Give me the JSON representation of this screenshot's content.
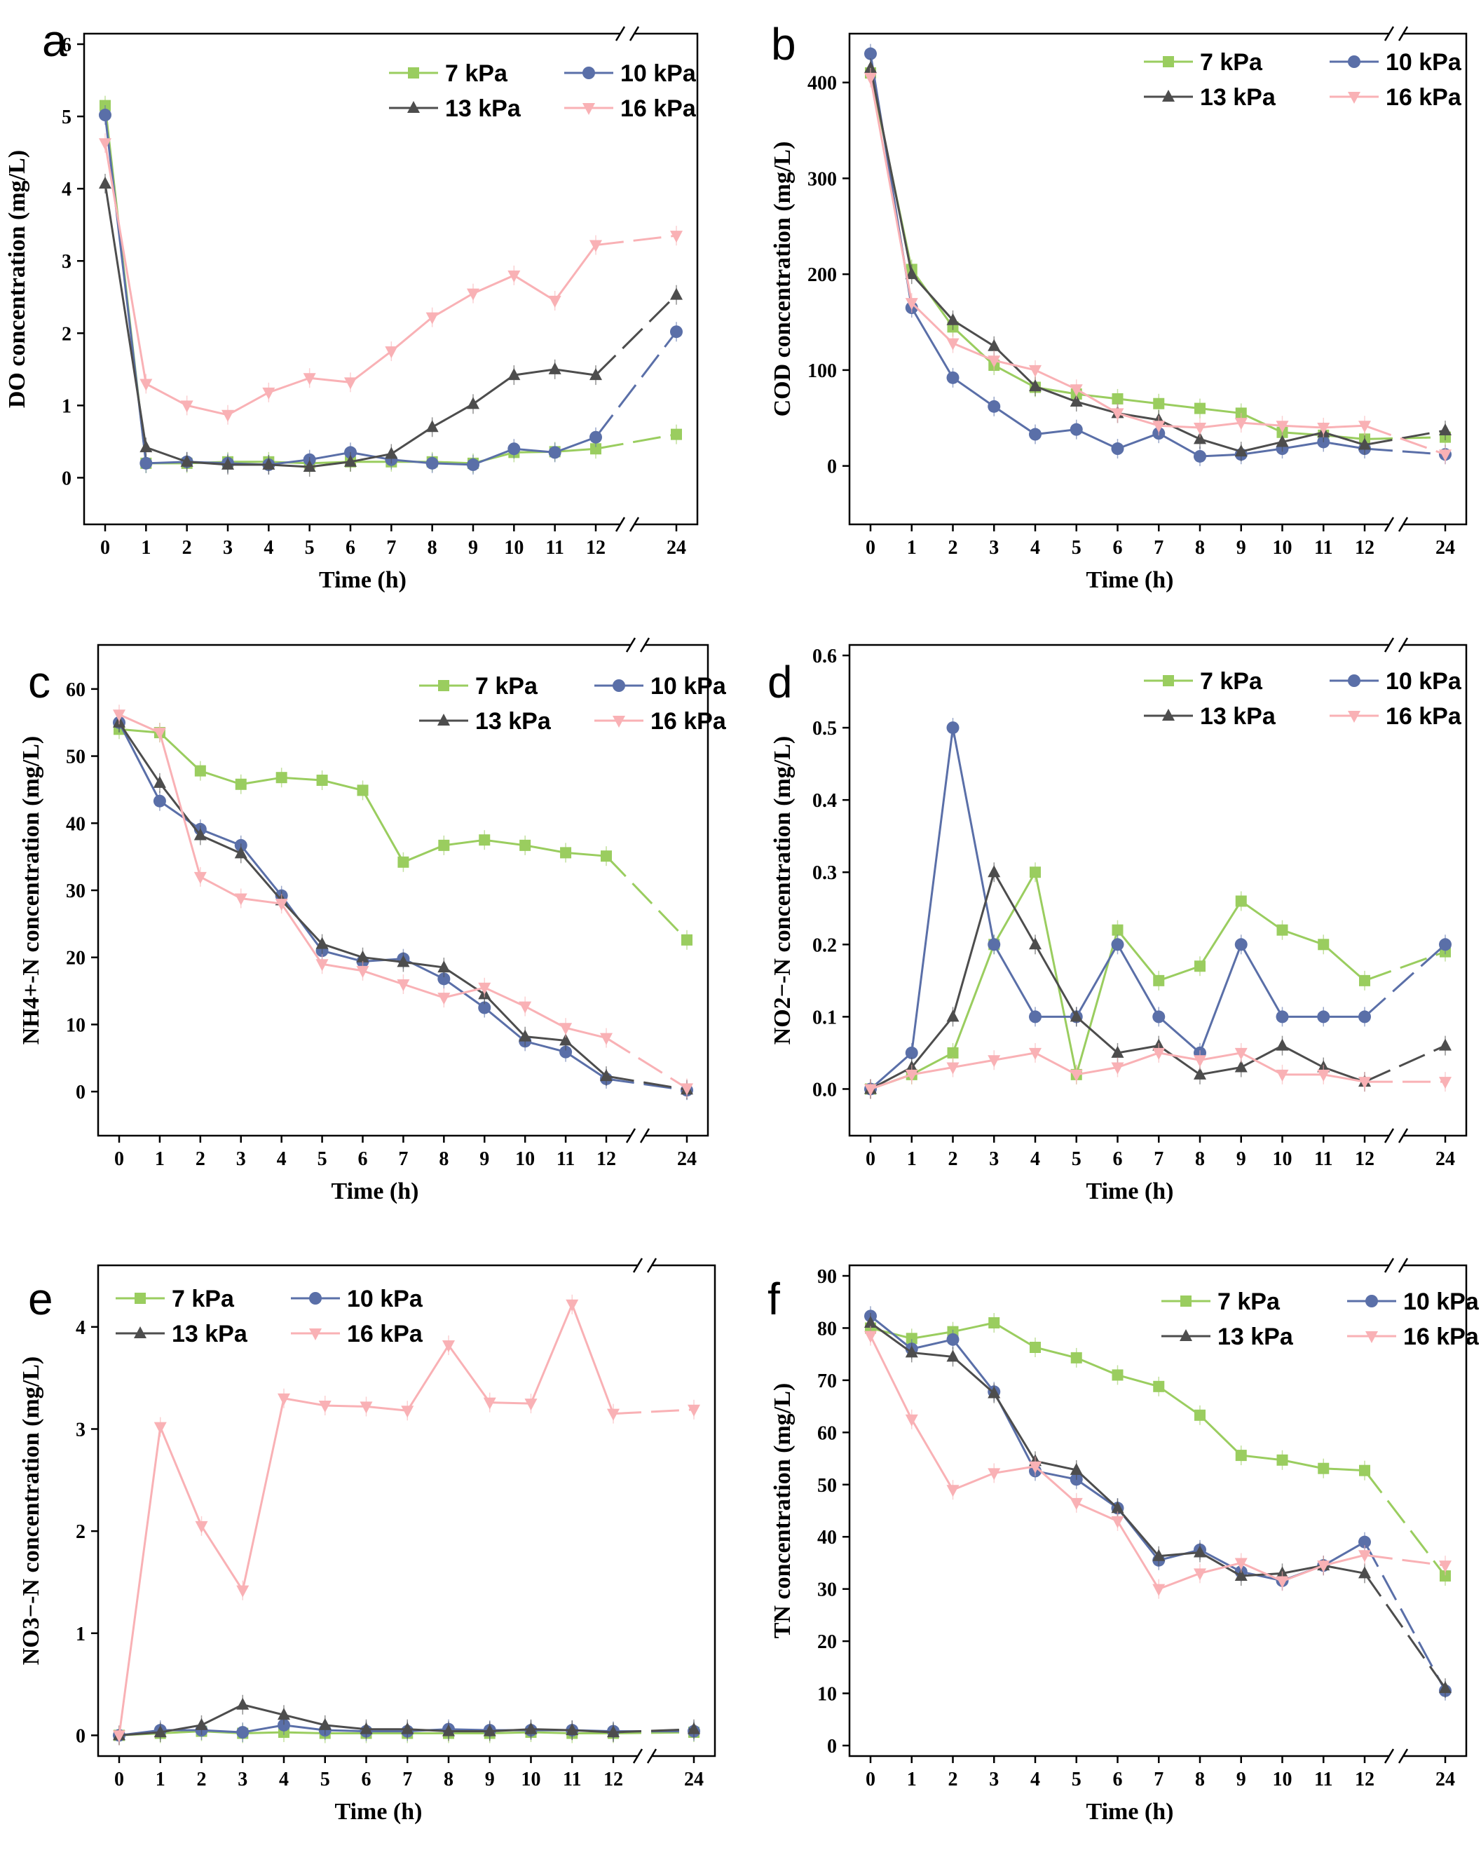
{
  "colors": {
    "7 kPa": "#9acd5f",
    "10 kPa": "#5a6fa8",
    "13 kPa": "#4d4d4d",
    "16 kPa": "#f9b1b5"
  },
  "chart_data": [
    {
      "panel": "a",
      "type": "line",
      "xlabel": "Time (h)",
      "ylabel": "DO concentration (mg/L)",
      "x": [
        0,
        1,
        2,
        3,
        4,
        5,
        6,
        7,
        8,
        9,
        10,
        11,
        12,
        24
      ],
      "x_tick_labels": [
        "0",
        "1",
        "2",
        "3",
        "4",
        "5",
        "6",
        "7",
        "8",
        "9",
        "10",
        "11",
        "12",
        "24"
      ],
      "y_ticks": [
        0,
        1,
        2,
        3,
        4,
        5,
        6
      ],
      "ylim": [
        -0.5,
        6
      ],
      "series": [
        {
          "name": "7 kPa",
          "values": [
            5.15,
            0.2,
            0.2,
            0.22,
            0.22,
            0.2,
            0.22,
            0.22,
            0.22,
            0.2,
            0.35,
            0.36,
            0.4,
            0.6
          ]
        },
        {
          "name": "10 kPa",
          "values": [
            5.02,
            0.2,
            0.22,
            0.2,
            0.18,
            0.25,
            0.35,
            0.25,
            0.2,
            0.18,
            0.4,
            0.35,
            0.56,
            2.02
          ]
        },
        {
          "name": "13 kPa",
          "values": [
            4.07,
            0.42,
            0.22,
            0.18,
            0.18,
            0.15,
            0.22,
            0.33,
            0.7,
            1.02,
            1.42,
            1.5,
            1.42,
            2.53
          ]
        },
        {
          "name": "16 kPa",
          "values": [
            4.63,
            1.3,
            1.0,
            0.87,
            1.18,
            1.38,
            1.32,
            1.75,
            2.22,
            2.55,
            2.8,
            2.45,
            3.22,
            3.35
          ]
        }
      ]
    },
    {
      "panel": "b",
      "type": "line",
      "xlabel": "Time (h)",
      "ylabel": "COD concentration (mg/L)",
      "x": [
        0,
        1,
        2,
        3,
        4,
        5,
        6,
        7,
        8,
        9,
        10,
        11,
        12,
        24
      ],
      "x_tick_labels": [
        "0",
        "1",
        "2",
        "3",
        "4",
        "5",
        "6",
        "7",
        "8",
        "9",
        "10",
        "11",
        "12",
        "24"
      ],
      "y_ticks": [
        0,
        100,
        200,
        300,
        400
      ],
      "ylim": [
        -50,
        440
      ],
      "series": [
        {
          "name": "7 kPa",
          "values": [
            410,
            205,
            145,
            105,
            82,
            75,
            70,
            65,
            60,
            55,
            35,
            32,
            28,
            30
          ]
        },
        {
          "name": "10 kPa",
          "values": [
            430,
            165,
            92,
            62,
            33,
            38,
            18,
            34,
            10,
            12,
            18,
            25,
            18,
            12
          ]
        },
        {
          "name": "13 kPa",
          "values": [
            415,
            200,
            152,
            125,
            83,
            67,
            55,
            48,
            28,
            15,
            25,
            35,
            22,
            37
          ]
        },
        {
          "name": "16 kPa",
          "values": [
            405,
            170,
            128,
            110,
            100,
            80,
            55,
            42,
            40,
            45,
            42,
            40,
            42,
            12
          ]
        }
      ]
    },
    {
      "panel": "c",
      "type": "line",
      "xlabel": "Time (h)",
      "ylabel": "NH4+-N concentration (mg/L)",
      "x": [
        0,
        1,
        2,
        3,
        4,
        5,
        6,
        7,
        8,
        9,
        10,
        11,
        12,
        24
      ],
      "x_tick_labels": [
        "0",
        "1",
        "2",
        "3",
        "4",
        "5",
        "6",
        "7",
        "8",
        "9",
        "10",
        "11",
        "12",
        "24"
      ],
      "y_ticks": [
        0,
        10,
        20,
        30,
        40,
        50,
        60
      ],
      "ylim": [
        -5,
        65
      ],
      "series": [
        {
          "name": "7 kPa",
          "values": [
            54,
            53.5,
            47.8,
            45.8,
            46.8,
            46.4,
            44.9,
            34.2,
            36.7,
            37.5,
            36.7,
            35.6,
            35.1,
            22.6
          ]
        },
        {
          "name": "10 kPa",
          "values": [
            55,
            43.3,
            39.1,
            36.7,
            29.2,
            21,
            19.4,
            19.8,
            16.8,
            12.5,
            7.5,
            5.9,
            1.9,
            0.2
          ]
        },
        {
          "name": "13 kPa",
          "values": [
            55,
            46,
            38.2,
            35.5,
            28.5,
            22,
            20,
            19.3,
            18.5,
            14.5,
            8.2,
            7.6,
            2.3,
            0.3
          ]
        },
        {
          "name": "16 kPa",
          "values": [
            56.2,
            53.5,
            32,
            28.8,
            28,
            19,
            18,
            16,
            14,
            15.5,
            12.7,
            9.5,
            8,
            0.5
          ]
        }
      ]
    },
    {
      "panel": "d",
      "type": "line",
      "xlabel": "Time (h)",
      "ylabel": "NO2−-N concentration (mg/L)",
      "x": [
        0,
        1,
        2,
        3,
        4,
        5,
        6,
        7,
        8,
        9,
        10,
        11,
        12,
        24
      ],
      "x_tick_labels": [
        "0",
        "1",
        "2",
        "3",
        "4",
        "5",
        "6",
        "7",
        "8",
        "9",
        "10",
        "11",
        "12",
        "24"
      ],
      "y_ticks": [
        0.0,
        0.1,
        0.2,
        0.3,
        0.4,
        0.5,
        0.6
      ],
      "y_tick_labels": [
        "0.0",
        "0.1",
        "0.2",
        "0.3",
        "0.4",
        "0.5",
        "0.6"
      ],
      "ylim": [
        -0.05,
        0.6
      ],
      "series": [
        {
          "name": "7 kPa",
          "values": [
            0,
            0.02,
            0.05,
            0.2,
            0.3,
            0.02,
            0.22,
            0.15,
            0.17,
            0.26,
            0.22,
            0.2,
            0.15,
            0.19
          ]
        },
        {
          "name": "10 kPa",
          "values": [
            0,
            0.05,
            0.5,
            0.2,
            0.1,
            0.1,
            0.2,
            0.1,
            0.05,
            0.2,
            0.1,
            0.1,
            0.1,
            0.2
          ]
        },
        {
          "name": "13 kPa",
          "values": [
            0,
            0.03,
            0.1,
            0.3,
            0.2,
            0.1,
            0.05,
            0.06,
            0.02,
            0.03,
            0.06,
            0.03,
            0.01,
            0.06
          ]
        },
        {
          "name": "16 kPa",
          "values": [
            0,
            0.02,
            0.03,
            0.04,
            0.05,
            0.02,
            0.03,
            0.05,
            0.04,
            0.05,
            0.02,
            0.02,
            0.01,
            0.01
          ]
        }
      ]
    },
    {
      "panel": "e",
      "type": "line",
      "xlabel": "Time (h)",
      "ylabel": "NO3−-N concentration (mg/L)",
      "x": [
        0,
        1,
        2,
        3,
        4,
        5,
        6,
        7,
        8,
        9,
        10,
        11,
        12,
        24
      ],
      "x_tick_labels": [
        "0",
        "1",
        "2",
        "3",
        "4",
        "5",
        "6",
        "7",
        "8",
        "9",
        "10",
        "11",
        "12",
        "24"
      ],
      "y_ticks": [
        0,
        1,
        2,
        3,
        4
      ],
      "ylim": [
        -0.1,
        4.5
      ],
      "series": [
        {
          "name": "7 kPa",
          "values": [
            0,
            0.02,
            0.04,
            0.02,
            0.03,
            0.02,
            0.02,
            0.02,
            0.02,
            0.02,
            0.03,
            0.02,
            0.02,
            0.03
          ]
        },
        {
          "name": "10 kPa",
          "values": [
            0,
            0.05,
            0.05,
            0.03,
            0.1,
            0.05,
            0.04,
            0.04,
            0.06,
            0.05,
            0.05,
            0.05,
            0.04,
            0.04
          ]
        },
        {
          "name": "13 kPa",
          "values": [
            0,
            0.03,
            0.1,
            0.3,
            0.2,
            0.1,
            0.06,
            0.06,
            0.04,
            0.04,
            0.06,
            0.05,
            0.03,
            0.06
          ]
        },
        {
          "name": "16 kPa",
          "values": [
            0,
            3.02,
            2.05,
            1.42,
            3.3,
            3.23,
            3.22,
            3.18,
            3.82,
            3.26,
            3.25,
            4.22,
            3.15,
            3.19
          ]
        }
      ]
    },
    {
      "panel": "f",
      "type": "line",
      "xlabel": "Time (h)",
      "ylabel": "TN concentration (mg/L)",
      "x": [
        0,
        1,
        2,
        3,
        4,
        5,
        6,
        7,
        8,
        9,
        10,
        11,
        12,
        24
      ],
      "x_tick_labels": [
        "0",
        "1",
        "2",
        "3",
        "4",
        "5",
        "6",
        "7",
        "8",
        "9",
        "10",
        "11",
        "12",
        "24"
      ],
      "y_ticks": [
        0,
        10,
        20,
        30,
        40,
        50,
        60,
        70,
        80,
        90
      ],
      "ylim": [
        0,
        90
      ],
      "series": [
        {
          "name": "7 kPa",
          "values": [
            80,
            78,
            79.3,
            81,
            76.3,
            74.3,
            71,
            68.8,
            63.3,
            55.6,
            54.7,
            53.1,
            52.7,
            32.5
          ]
        },
        {
          "name": "10 kPa",
          "values": [
            82.3,
            76,
            77.8,
            67.8,
            52.6,
            51,
            45.5,
            35.5,
            37.5,
            33.3,
            31.6,
            34.5,
            39,
            10.5
          ]
        },
        {
          "name": "13 kPa",
          "values": [
            81,
            75.3,
            74.5,
            67.5,
            54.5,
            52.8,
            45.5,
            36.3,
            37,
            32.5,
            33,
            34.5,
            33,
            11
          ]
        },
        {
          "name": "16 kPa",
          "values": [
            78.5,
            62.5,
            49,
            52.2,
            53.5,
            46.5,
            43,
            30,
            33,
            35,
            31.5,
            34.5,
            36.5,
            34.5
          ]
        }
      ]
    }
  ],
  "legend": {
    "labels": [
      "7 kPa",
      "10 kPa",
      "13 kPa",
      "16 kPa"
    ]
  }
}
